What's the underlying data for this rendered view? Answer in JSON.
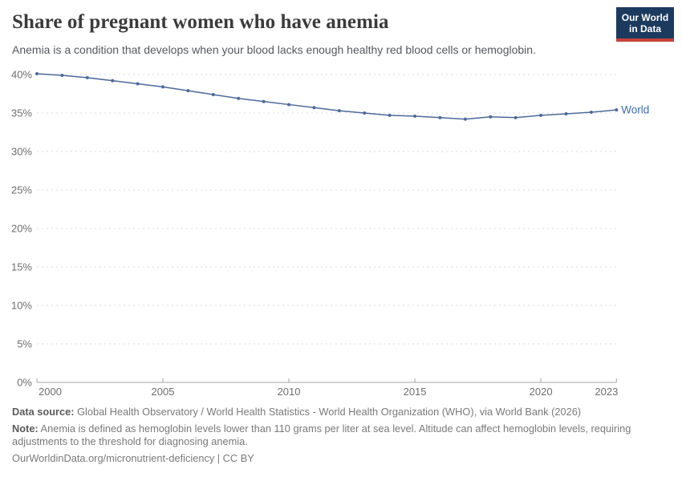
{
  "header": {
    "title": "Share of pregnant women who have anemia",
    "subtitle": "Anemia is a condition that develops when your blood lacks enough healthy red blood cells or hemoglobin.",
    "logo": {
      "line1": "Our World",
      "line2": "in Data",
      "background_color": "#1b3a5e",
      "accent_color": "#c5423a"
    }
  },
  "chart_data": {
    "type": "line",
    "title": "Share of pregnant women who have anemia",
    "x": [
      2000,
      2001,
      2002,
      2003,
      2004,
      2005,
      2006,
      2007,
      2008,
      2009,
      2010,
      2011,
      2012,
      2013,
      2014,
      2015,
      2016,
      2017,
      2018,
      2019,
      2020,
      2021,
      2022,
      2023
    ],
    "series": [
      {
        "name": "World",
        "color": "#4c6a9c",
        "label_color": "#3d6bb3",
        "values": [
          40.1,
          39.9,
          39.6,
          39.2,
          38.8,
          38.4,
          37.9,
          37.4,
          36.9,
          36.5,
          36.1,
          35.7,
          35.3,
          35.0,
          34.7,
          34.6,
          34.4,
          34.2,
          34.5,
          34.4,
          34.7,
          34.9,
          35.1,
          35.4
        ]
      }
    ],
    "xlabel": "",
    "ylabel": "",
    "ylim": [
      0,
      40
    ],
    "yticks": [
      0,
      5,
      10,
      15,
      20,
      25,
      30,
      35,
      40
    ],
    "ytick_suffix": "%",
    "xticks": [
      2000,
      2005,
      2010,
      2015,
      2020,
      2023
    ],
    "grid": "horizontal-dashed",
    "gridline_color": "#dddddd",
    "axis_color": "#a5a5a5",
    "tick_label_color": "#6e6e6e",
    "legend": "end-of-line-label"
  },
  "footer": {
    "data_source_label": "Data source:",
    "data_source_text": " Global Health Observatory / World Health Statistics - World Health Organization (WHO), via World Bank (2026)",
    "note_label": "Note:",
    "note_text": " Anemia is defined as hemoglobin levels lower than 110 grams per liter at sea level. Altitude can affect hemoglobin levels, requiring adjustments to the threshold for diagnosing anemia.",
    "citation": "OurWorldinData.org/micronutrient-deficiency | CC BY"
  }
}
